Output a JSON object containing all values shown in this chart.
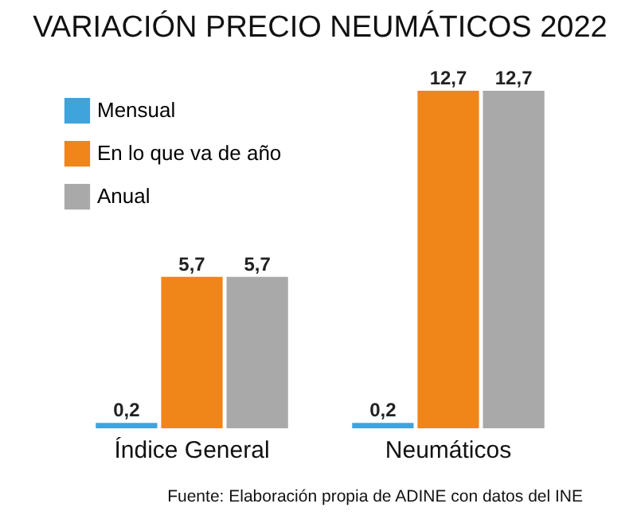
{
  "chart_data": {
    "type": "bar",
    "title": "VARIACIÓN PRECIO NEUMÁTICOS 2022",
    "categories": [
      "Índice General",
      "Neumáticos"
    ],
    "series": [
      {
        "name": "Mensual",
        "color": "#3fa3dc",
        "values": [
          0.2,
          0.2
        ],
        "value_labels": [
          "0,2",
          "0,2"
        ]
      },
      {
        "name": "En lo que va de año",
        "color": "#f08519",
        "values": [
          5.7,
          12.7
        ],
        "value_labels": [
          "5,7",
          "12,7"
        ]
      },
      {
        "name": "Anual",
        "color": "#a9a9a9",
        "values": [
          5.7,
          12.7
        ],
        "value_labels": [
          "5,7",
          "12,7"
        ]
      }
    ],
    "legend": "top left",
    "grid": false,
    "annotations": [
      "Fuente: Elaboración propia de ADINE con datos del INE"
    ]
  }
}
